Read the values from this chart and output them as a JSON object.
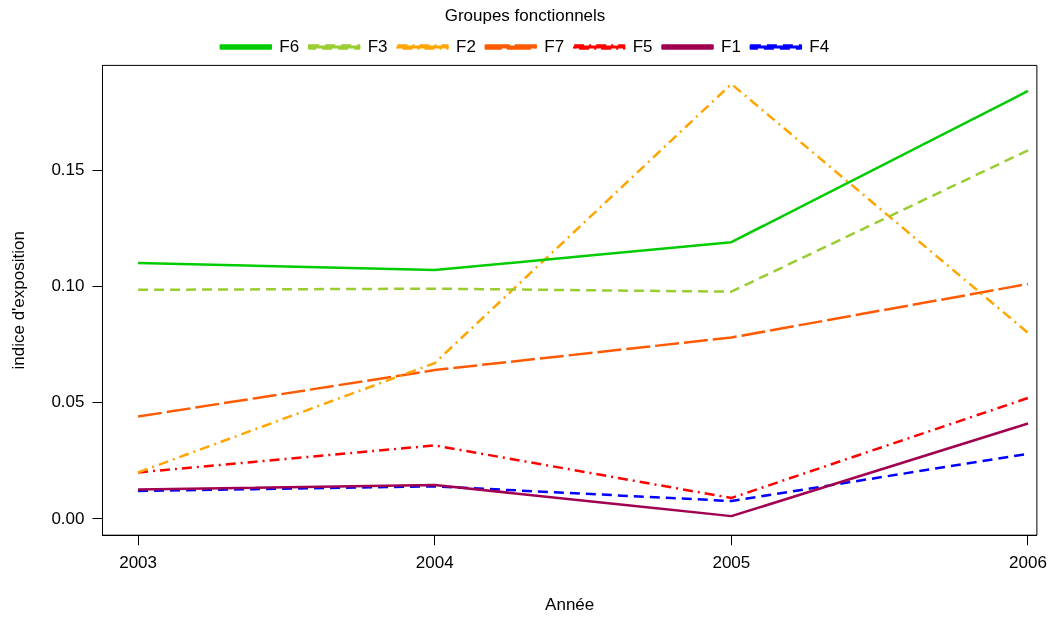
{
  "chart_data": {
    "type": "line",
    "xlabel": "Année",
    "ylabel": "indice d'exposition",
    "legend_title": "Groupes fonctionnels",
    "legend": "top",
    "grid": false,
    "marker": "none",
    "x": [
      2003,
      2004,
      2005,
      2006
    ],
    "xlim": [
      2002.88,
      2006.03
    ],
    "xticks": [
      2003,
      2004,
      2005,
      2006
    ],
    "ylim": [
      -0.007,
      0.195
    ],
    "yticks": [
      {
        "value": 0,
        "label": "0.00"
      },
      0.05,
      {
        "value": 0.1,
        "label": "0.10"
      },
      0.15
    ],
    "series": [
      {
        "name": "F6",
        "color": "#00cc00",
        "line_style": "solid",
        "values": [
          0.11,
          0.107,
          0.119,
          0.184
        ]
      },
      {
        "name": "F3",
        "color": "#9acd32",
        "line_style": "dashed",
        "values": [
          0.0985,
          0.099,
          0.0977,
          0.1585
        ]
      },
      {
        "name": "F2",
        "color": "#ffa500",
        "line_style": "dashdot",
        "values": [
          0.02,
          0.067,
          0.187,
          0.08
        ]
      },
      {
        "name": "F7",
        "color": "#ff5a00",
        "line_style": "longdash",
        "values": [
          0.044,
          0.064,
          0.078,
          0.101
        ]
      },
      {
        "name": "F5",
        "color": "#ff0000",
        "line_style": "dashdot",
        "values": [
          0.02,
          0.0316,
          0.009,
          0.052
        ]
      },
      {
        "name": "F1",
        "color": "#a0004f",
        "line_style": "solid",
        "values": [
          0.0126,
          0.0146,
          0.0012,
          0.041
        ]
      },
      {
        "name": "F4",
        "color": "#0000ff",
        "line_style": "dashed",
        "values": [
          0.012,
          0.014,
          0.0077,
          0.028
        ]
      }
    ]
  }
}
